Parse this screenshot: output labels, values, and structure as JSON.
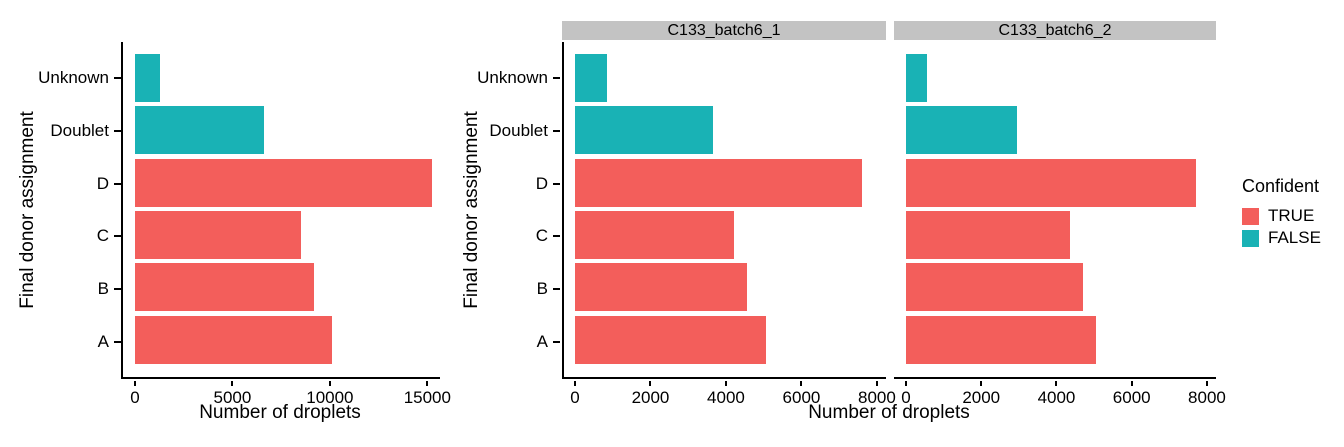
{
  "colors": {
    "true": "#F35E5B",
    "false": "#19B2B5",
    "strip_bg": "#C3C3C3",
    "axis": "#000000"
  },
  "legend": {
    "title": "Confident",
    "items": [
      {
        "label": "TRUE",
        "color_key": "true"
      },
      {
        "label": "FALSE",
        "color_key": "false"
      }
    ]
  },
  "chart_data": [
    {
      "type": "bar",
      "orientation": "horizontal",
      "title": "",
      "xlabel": "Number of droplets",
      "ylabel": "Final donor assignment",
      "categories_top_to_bottom": [
        "Unknown",
        "Doublet",
        "D",
        "C",
        "B",
        "A"
      ],
      "confident": [
        "FALSE",
        "FALSE",
        "TRUE",
        "TRUE",
        "TRUE",
        "TRUE"
      ],
      "values": [
        1300,
        6600,
        15250,
        8500,
        9200,
        10100
      ],
      "xticks": [
        0,
        5000,
        10000,
        15000
      ],
      "xlim": [
        0,
        15650
      ],
      "grid": false,
      "legend_position": "none"
    },
    {
      "type": "bar",
      "orientation": "horizontal",
      "title": "",
      "xlabel": "Number of droplets",
      "ylabel": "Final donor assignment",
      "categories_top_to_bottom": [
        "Unknown",
        "Doublet",
        "D",
        "C",
        "B",
        "A"
      ],
      "confident": [
        "FALSE",
        "FALSE",
        "TRUE",
        "TRUE",
        "TRUE",
        "TRUE"
      ],
      "facets": [
        {
          "label": "C133_batch6_1",
          "values": [
            850,
            3650,
            7600,
            4200,
            4550,
            5050
          ]
        },
        {
          "label": "C133_batch6_2",
          "values": [
            550,
            2950,
            7700,
            4350,
            4700,
            5050
          ]
        }
      ],
      "xticks": [
        0,
        2000,
        4000,
        6000,
        8000
      ],
      "xlim": [
        0,
        8240
      ],
      "grid": false,
      "legend_position": "right"
    }
  ]
}
